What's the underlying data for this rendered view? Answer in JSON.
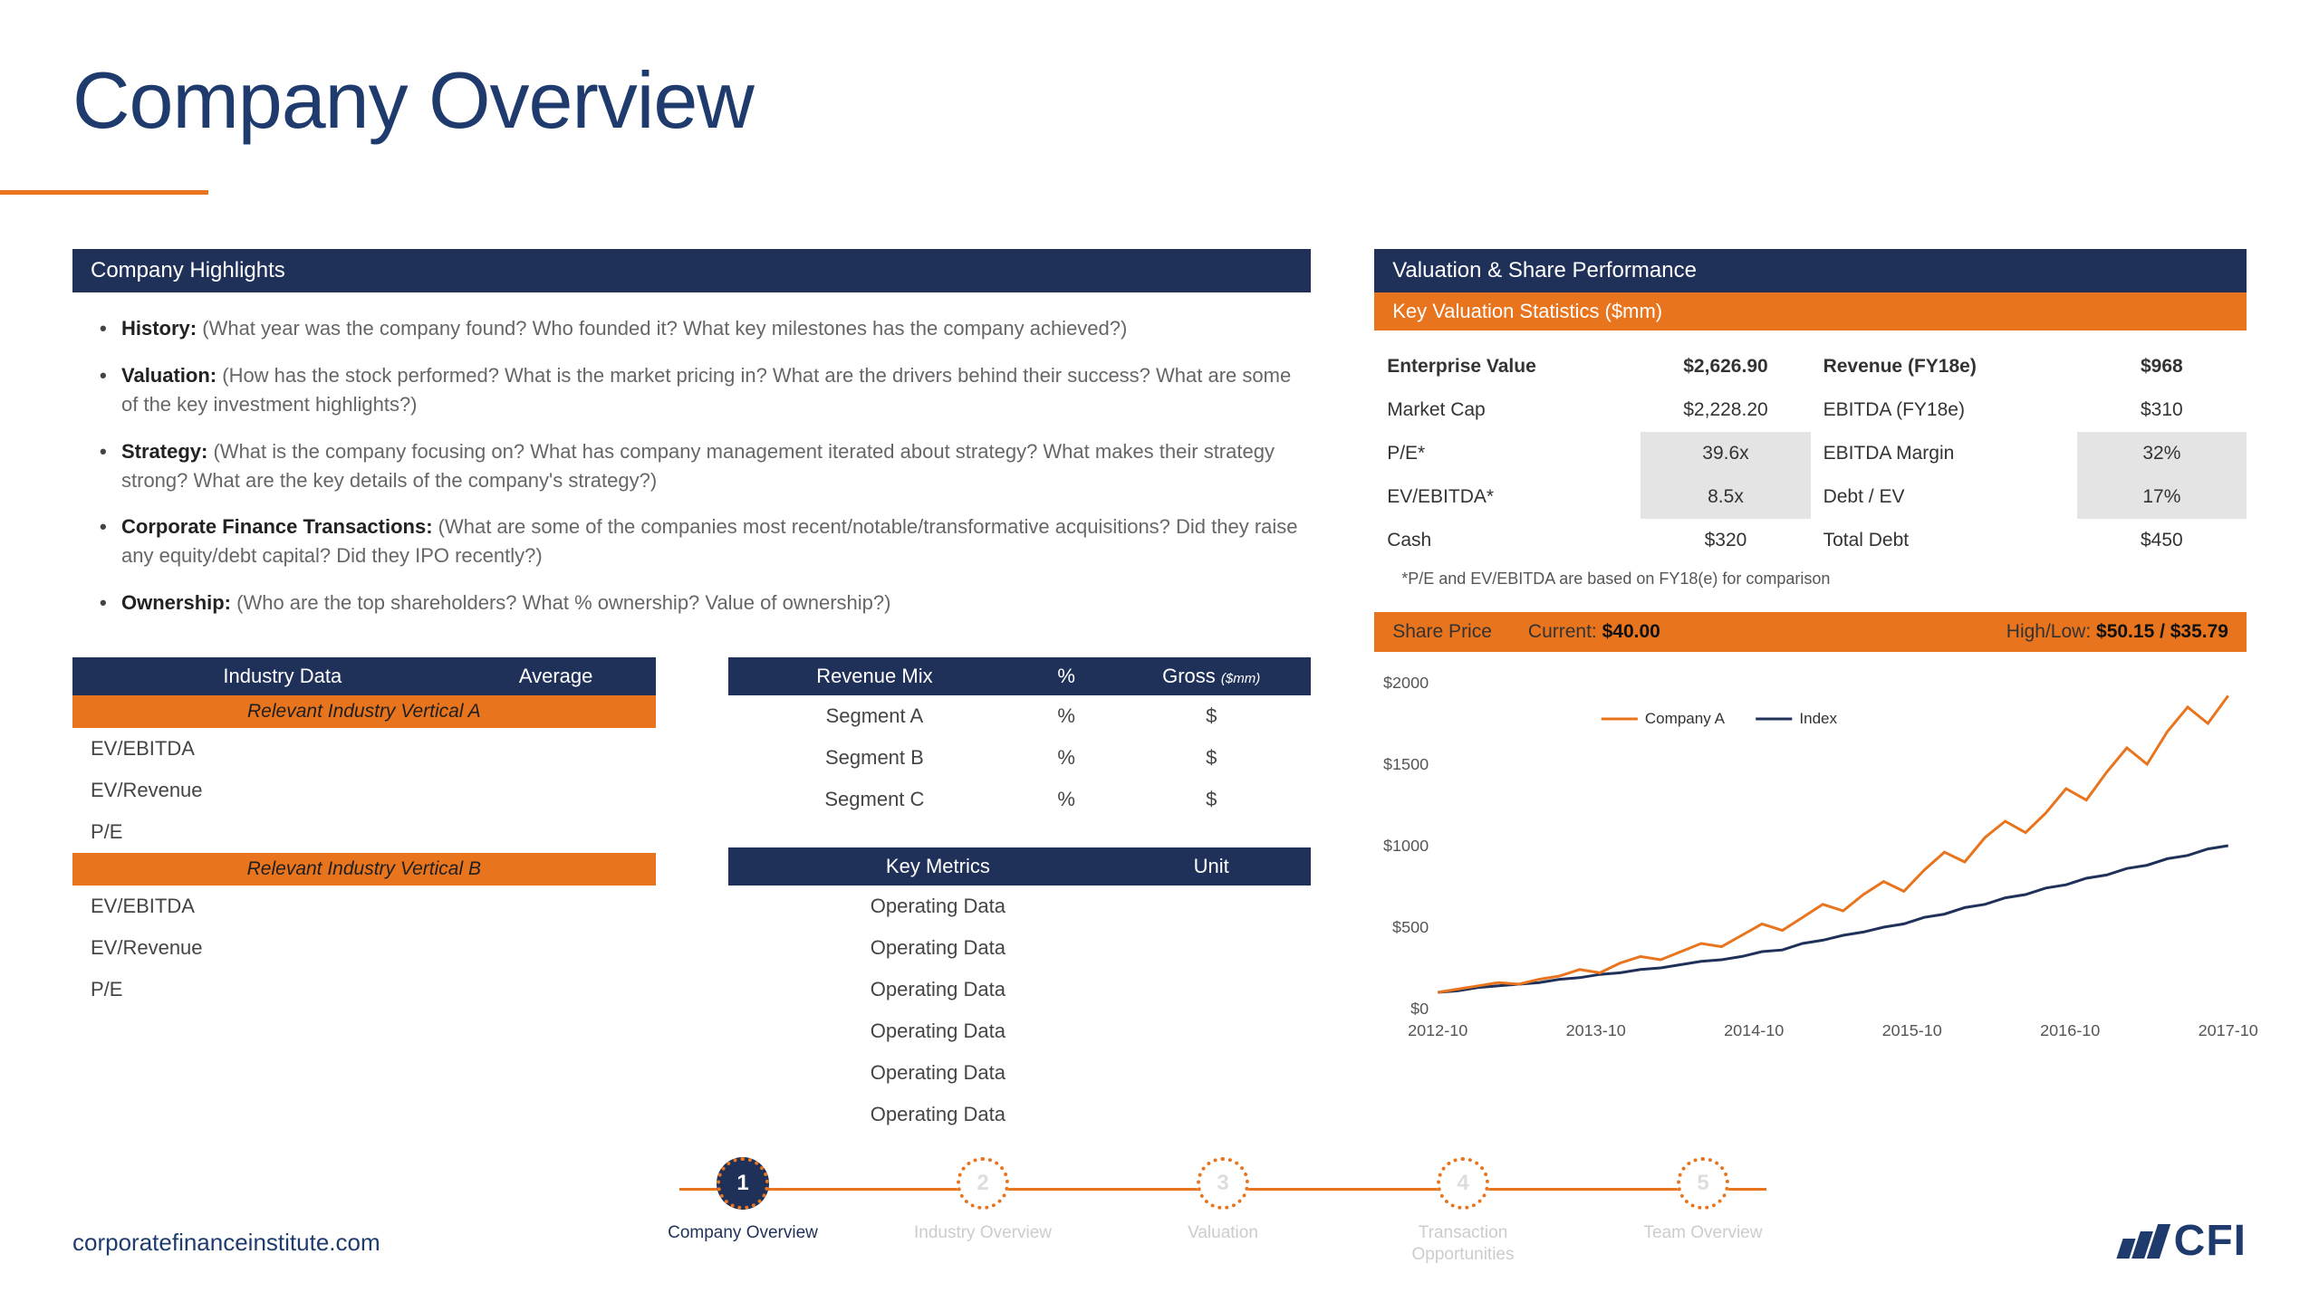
{
  "title": "Company Overview",
  "colors": {
    "navy": "#1f3159",
    "title_navy": "#1f3b6e",
    "orange": "#e8741e",
    "grid": "#eeeeee",
    "shade": "#e4e4e4",
    "text_muted": "#666666"
  },
  "highlights": {
    "header": "Company Highlights",
    "items": [
      {
        "label": "History:",
        "text": " (What year was the company found? Who founded it? What key milestones has the company achieved?)"
      },
      {
        "label": "Valuation:",
        "text": " (How has the stock performed? What is the market pricing in? What are the drivers behind their success? What are some of the key investment highlights?)"
      },
      {
        "label": "Strategy:",
        "text": " (What is the company focusing on? What has company management iterated about strategy? What makes their strategy strong? What are the key details of the company's strategy?)"
      },
      {
        "label": "Corporate Finance Transactions:",
        "text": " (What are some of the companies most recent/notable/transformative acquisitions? Did they raise any equity/debt capital? Did they IPO recently?)"
      },
      {
        "label": "Ownership:",
        "text": " (Who are the top shareholders? What % ownership? Value of ownership?)"
      }
    ]
  },
  "industry": {
    "header_left": "Industry Data",
    "header_right": "Average",
    "vertical_a": "Relevant Industry Vertical A",
    "vertical_b": "Relevant Industry Vertical B",
    "rows": [
      "EV/EBITDA",
      "EV/Revenue",
      "P/E"
    ]
  },
  "revmix": {
    "header": "Revenue Mix",
    "col_pct": "%",
    "col_gross": "Gross",
    "col_gross_note": "($mm)",
    "rows": [
      {
        "name": "Segment A",
        "pct": "%",
        "gross": "$"
      },
      {
        "name": "Segment B",
        "pct": "%",
        "gross": "$"
      },
      {
        "name": "Segment C",
        "pct": "%",
        "gross": "$"
      }
    ]
  },
  "keymetrics": {
    "header": "Key Metrics",
    "col_unit": "Unit",
    "rows": [
      "Operating Data",
      "Operating Data",
      "Operating Data",
      "Operating Data",
      "Operating Data",
      "Operating Data"
    ]
  },
  "valuation": {
    "header": "Valuation & Share Performance",
    "sub": "Key Valuation Statistics ($mm)",
    "grid": [
      {
        "l1": "Enterprise Value",
        "v1": "$2,626.90",
        "l2": "Revenue (FY18e)",
        "v2": "$968",
        "bold": true
      },
      {
        "l1": "Market Cap",
        "v1": "$2,228.20",
        "l2": "EBITDA (FY18e)",
        "v2": "$310"
      },
      {
        "l1": "P/E*",
        "v1": "39.6x",
        "l2": "EBITDA Margin",
        "v2": "32%",
        "shade": true
      },
      {
        "l1": "EV/EBITDA*",
        "v1": "8.5x",
        "l2": "Debt / EV",
        "v2": "17%",
        "shade": true
      },
      {
        "l1": "Cash",
        "v1": "$320",
        "l2": "Total Debt",
        "v2": "$450"
      }
    ],
    "footnote": "*P/E and EV/EBITDA are based on FY18(e) for comparison"
  },
  "shareprice": {
    "label": "Share Price",
    "current_label": "Current:",
    "current_value": "$40.00",
    "hl_label": "High/Low:",
    "hl_value": "$50.15 / $35.79"
  },
  "chart": {
    "type": "line",
    "legend": {
      "a": "Company A",
      "b": "Index"
    },
    "series_a_color": "#e8741e",
    "series_b_color": "#1f3159",
    "background": "#ffffff",
    "ylim": [
      0,
      2000
    ],
    "yticks": [
      0,
      500,
      1000,
      1500,
      2000
    ],
    "ylabels": [
      "$0",
      "$500",
      "$1000",
      "$1500",
      "$2000"
    ],
    "xticks": [
      "2012-10",
      "2013-10",
      "2014-10",
      "2015-10",
      "2016-10",
      "2017-10"
    ],
    "series_a": [
      100,
      120,
      140,
      160,
      150,
      180,
      200,
      240,
      220,
      280,
      320,
      300,
      350,
      400,
      380,
      450,
      520,
      480,
      560,
      640,
      600,
      700,
      780,
      720,
      850,
      960,
      900,
      1050,
      1150,
      1080,
      1200,
      1350,
      1280,
      1450,
      1600,
      1500,
      1700,
      1850,
      1750,
      1920
    ],
    "series_b": [
      100,
      110,
      130,
      140,
      150,
      160,
      180,
      190,
      210,
      220,
      240,
      250,
      270,
      290,
      300,
      320,
      350,
      360,
      400,
      420,
      450,
      470,
      500,
      520,
      560,
      580,
      620,
      640,
      680,
      700,
      740,
      760,
      800,
      820,
      860,
      880,
      920,
      940,
      980,
      1000
    ],
    "line_width": 3,
    "axis_fontsize": 18
  },
  "stepper": {
    "active_index": 0,
    "items": [
      {
        "num": "1",
        "label": "Company Overview"
      },
      {
        "num": "2",
        "label": "Industry Overview"
      },
      {
        "num": "3",
        "label": "Valuation"
      },
      {
        "num": "4",
        "label": "Transaction Opportunities"
      },
      {
        "num": "5",
        "label": "Team Overview"
      }
    ]
  },
  "footer": {
    "url": "corporatefinanceinstitute.com",
    "logo": "CFI"
  }
}
